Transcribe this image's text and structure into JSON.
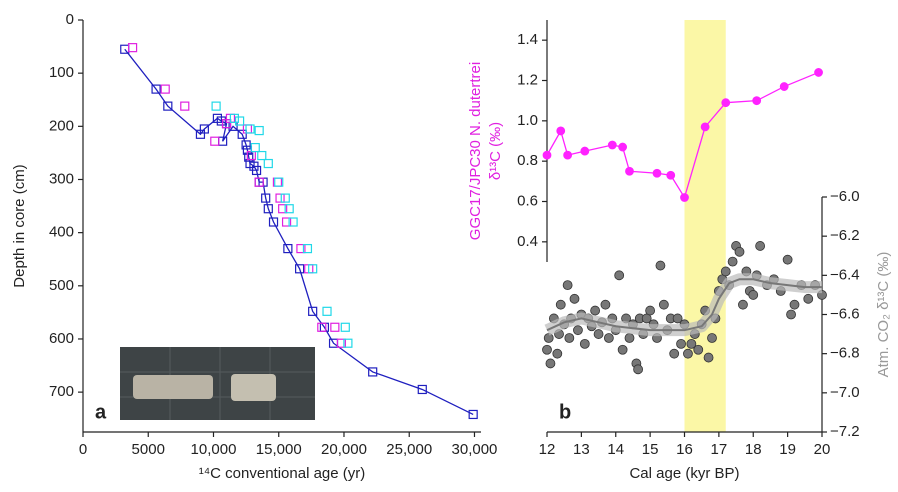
{
  "chart_data": [
    {
      "type": "scatter",
      "panel_label": "a",
      "x_label": "¹⁴C conventional age (yr)",
      "y_label": "Depth in core (cm)",
      "xlim": [
        0,
        30500
      ],
      "xticks": [
        0,
        5000,
        {
          "value": 10000,
          "label": "10,000"
        },
        {
          "value": 15000,
          "label": "15,000"
        },
        {
          "value": 20000,
          "label": "20,000"
        },
        {
          "value": 25000,
          "label": "25,000"
        },
        {
          "value": 30000,
          "label": "30,000"
        }
      ],
      "ylim": [
        0,
        775
      ],
      "yticks": [
        0,
        100,
        200,
        300,
        400,
        500,
        600,
        700
      ],
      "invert_y": true,
      "series": [
        {
          "color": "#1f1fbf",
          "line": true,
          "marker": "square",
          "x": [
            3200,
            5600,
            6500,
            9000,
            9300,
            10300,
            10600,
            11000,
            10700,
            11500,
            12200,
            12500,
            12600,
            12700,
            12800,
            13100,
            13300,
            13500,
            13800,
            14000,
            14200,
            14600,
            15700,
            16600,
            17600,
            18500,
            19200,
            22200,
            26000,
            29900
          ],
          "values": [
            55,
            130,
            162,
            215,
            205,
            185,
            190,
            195,
            228,
            200,
            215,
            235,
            245,
            258,
            270,
            275,
            283,
            305,
            305,
            335,
            355,
            380,
            430,
            468,
            548,
            578,
            608,
            662,
            695,
            742
          ]
        },
        {
          "color": "#e020e0",
          "line": false,
          "marker": "square",
          "x": [
            3800,
            6300,
            7800,
            10100,
            11000,
            11300,
            12600,
            12900,
            13500,
            14900,
            15100,
            15300,
            15600,
            16700,
            17300,
            18300,
            19300,
            19800
          ],
          "values": [
            52,
            130,
            162,
            228,
            195,
            185,
            205,
            255,
            305,
            305,
            335,
            355,
            380,
            430,
            468,
            578,
            578,
            608
          ]
        },
        {
          "color": "#20d8e8",
          "line": false,
          "marker": "square",
          "x": [
            10200,
            11600,
            12000,
            12800,
            13500,
            13200,
            13700,
            14200,
            15000,
            15500,
            15800,
            16100,
            17200,
            17600,
            18700,
            20100,
            20300
          ],
          "values": [
            162,
            185,
            190,
            205,
            208,
            240,
            255,
            270,
            305,
            335,
            355,
            380,
            430,
            468,
            548,
            578,
            608
          ]
        }
      ]
    },
    {
      "type": "scatter",
      "panel_label": "b",
      "x_label": "Cal age (kyr BP)",
      "y_label": [
        "GGC17/JPC30 N. dutertrei",
        "δ¹³C (‰)"
      ],
      "y2_label": "Atm. CO₂ δ¹³C (‰)",
      "xlim": [
        12,
        20
      ],
      "xticks": [
        12,
        13,
        14,
        15,
        16,
        17,
        18,
        19,
        20
      ],
      "ylim": [
        0.3,
        1.5
      ],
      "yticks": [
        0.4,
        0.6,
        0.8,
        {
          "value": 1,
          "label": "1.0"
        },
        1.2,
        1.4
      ],
      "y2lim": [
        -7.2,
        -6.0
      ],
      "y2ticks": [
        {
          "value": -7.2,
          "label": "−7.2"
        },
        {
          "value": -7,
          "label": "−7.0"
        },
        {
          "value": -6.8,
          "label": "−6.8"
        },
        {
          "value": -6.6,
          "label": "−6.6"
        },
        {
          "value": -6.4,
          "label": "−6.4"
        },
        {
          "value": -6.2,
          "label": "−6.2"
        },
        {
          "value": -6,
          "label": "−6.0"
        }
      ],
      "highlight": [
        16,
        17.2
      ],
      "highlight_color": "#fbf7a6",
      "series": [
        {
          "color": "#888888",
          "axis": "y2",
          "line": false,
          "marker": "circle",
          "x": [
            12.0,
            12.05,
            12.1,
            12.2,
            12.3,
            12.35,
            12.4,
            12.5,
            12.6,
            12.65,
            12.7,
            12.8,
            12.9,
            13.0,
            13.1,
            13.2,
            13.3,
            13.4,
            13.5,
            13.6,
            13.7,
            13.8,
            13.9,
            14.0,
            14.1,
            14.2,
            14.3,
            14.4,
            14.5,
            14.6,
            14.65,
            14.7,
            14.8,
            14.9,
            15.0,
            15.1,
            15.2,
            15.3,
            15.4,
            15.5,
            15.6,
            15.7,
            15.8,
            15.9,
            16.0,
            16.1,
            16.2,
            16.3,
            16.4,
            16.5,
            16.6,
            16.7,
            16.8,
            16.9,
            17.0,
            17.1,
            17.2,
            17.3,
            17.4,
            17.5,
            17.6,
            17.7,
            17.8,
            17.9,
            18.0,
            18.1,
            18.2,
            18.4,
            18.6,
            18.8,
            19.0,
            19.1,
            19.2,
            19.4,
            19.6,
            19.8,
            20.0
          ],
          "values": [
            -6.78,
            -6.72,
            -6.85,
            -6.62,
            -6.8,
            -6.7,
            -6.55,
            -6.65,
            -6.45,
            -6.72,
            -6.62,
            -6.52,
            -6.68,
            -6.6,
            -6.75,
            -6.62,
            -6.66,
            -6.58,
            -6.7,
            -6.64,
            -6.55,
            -6.72,
            -6.62,
            -6.68,
            -6.4,
            -6.78,
            -6.62,
            -6.72,
            -6.65,
            -6.85,
            -6.88,
            -6.62,
            -6.7,
            -6.62,
            -6.58,
            -6.65,
            -6.72,
            -6.35,
            -6.55,
            -6.68,
            -6.62,
            -6.8,
            -6.62,
            -6.75,
            -6.65,
            -6.8,
            -6.75,
            -6.7,
            -6.78,
            -6.65,
            -6.58,
            -6.82,
            -6.72,
            -6.62,
            -6.48,
            -6.42,
            -6.38,
            -6.45,
            -6.33,
            -6.25,
            -6.28,
            -6.55,
            -6.38,
            -6.48,
            -6.5,
            -6.4,
            -6.25,
            -6.45,
            -6.42,
            -6.48,
            -6.32,
            -6.6,
            -6.55,
            -6.45,
            -6.52,
            -6.45,
            -6.5
          ]
        },
        {
          "color": "#777777",
          "axis": "y2",
          "line": true,
          "band": true,
          "x": [
            12,
            12.5,
            13,
            13.5,
            14,
            14.5,
            15,
            15.5,
            16,
            16.5,
            16.8,
            17,
            17.3,
            17.6,
            18,
            18.5,
            19,
            19.5,
            20
          ],
          "values": [
            -6.68,
            -6.64,
            -6.62,
            -6.64,
            -6.66,
            -6.67,
            -6.68,
            -6.68,
            -6.68,
            -6.66,
            -6.6,
            -6.52,
            -6.44,
            -6.42,
            -6.42,
            -6.44,
            -6.45,
            -6.46,
            -6.46
          ]
        },
        {
          "color": "#ff22ff",
          "line": true,
          "marker": "circle",
          "x": [
            12.0,
            12.4,
            12.6,
            13.1,
            13.9,
            14.2,
            14.4,
            15.2,
            15.6,
            16.0,
            16.6,
            17.2,
            18.1,
            18.9,
            19.9
          ],
          "values": [
            0.83,
            0.95,
            0.83,
            0.85,
            0.88,
            0.87,
            0.75,
            0.74,
            0.73,
            0.62,
            0.97,
            1.09,
            1.1,
            1.17,
            1.24
          ]
        }
      ]
    }
  ]
}
